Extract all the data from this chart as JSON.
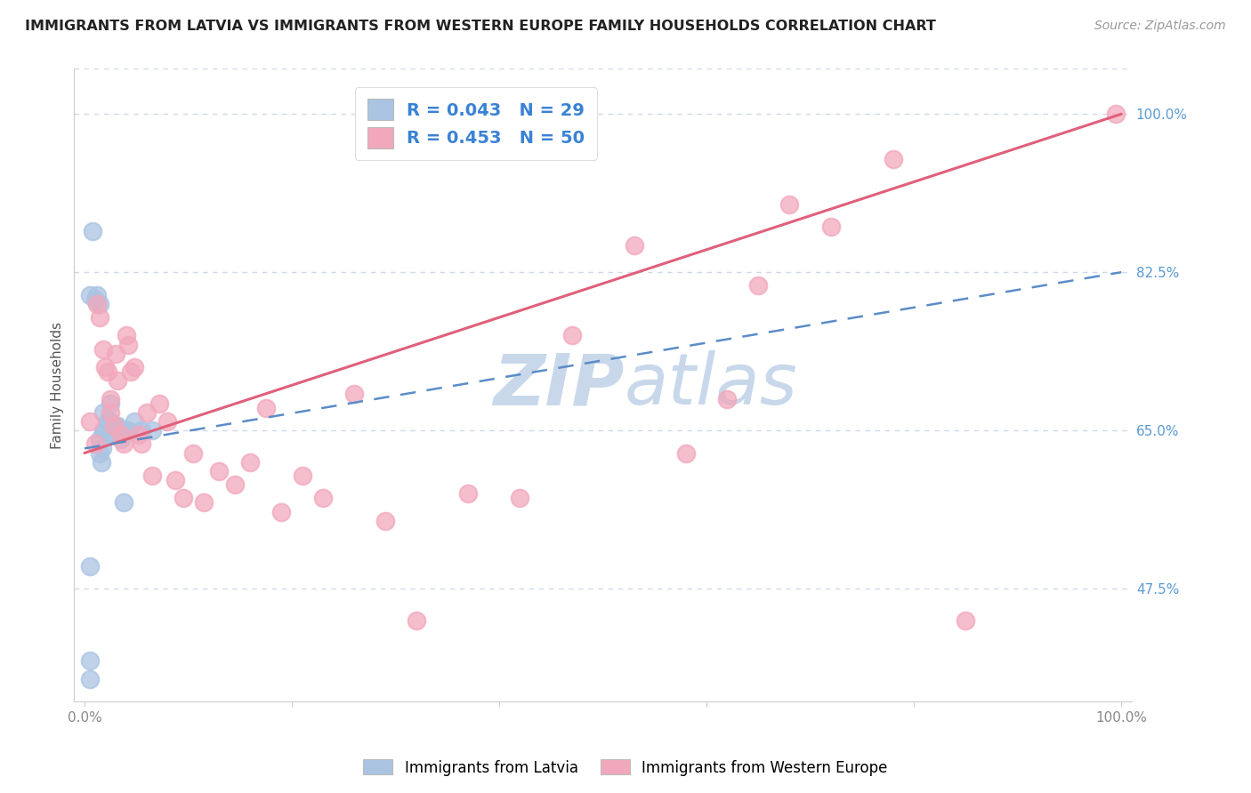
{
  "title": "IMMIGRANTS FROM LATVIA VS IMMIGRANTS FROM WESTERN EUROPE FAMILY HOUSEHOLDS CORRELATION CHART",
  "source": "Source: ZipAtlas.com",
  "ylabel": "Family Households",
  "y_ticks": [
    0.475,
    0.65,
    0.825,
    1.0
  ],
  "y_tick_labels": [
    "47.5%",
    "65.0%",
    "82.5%",
    "100.0%"
  ],
  "xlim": [
    -0.01,
    1.01
  ],
  "ylim": [
    0.35,
    1.05
  ],
  "blue_R": 0.043,
  "blue_N": 29,
  "pink_R": 0.453,
  "pink_N": 50,
  "blue_color": "#aac4e2",
  "pink_color": "#f2a8bc",
  "blue_line_color": "#5b8cc8",
  "pink_line_color": "#e0607a",
  "legend_text_color": "#3a82d4",
  "right_axis_color": "#5b9ad4",
  "watermark_color": "#c8d8ea",
  "blue_x": [
    0.005,
    0.005,
    0.008,
    0.01,
    0.012,
    0.015,
    0.015,
    0.015,
    0.016,
    0.017,
    0.018,
    0.018,
    0.02,
    0.022,
    0.025,
    0.025,
    0.027,
    0.03,
    0.03,
    0.032,
    0.035,
    0.038,
    0.04,
    0.042,
    0.048,
    0.055,
    0.065,
    0.005,
    0.005
  ],
  "blue_y": [
    0.375,
    0.395,
    0.87,
    0.795,
    0.8,
    0.79,
    0.64,
    0.625,
    0.615,
    0.63,
    0.65,
    0.67,
    0.65,
    0.66,
    0.66,
    0.68,
    0.645,
    0.645,
    0.655,
    0.655,
    0.64,
    0.57,
    0.65,
    0.65,
    0.66,
    0.65,
    0.65,
    0.8,
    0.5
  ],
  "pink_x": [
    0.005,
    0.01,
    0.012,
    0.015,
    0.018,
    0.02,
    0.022,
    0.025,
    0.025,
    0.028,
    0.03,
    0.032,
    0.035,
    0.038,
    0.04,
    0.042,
    0.045,
    0.048,
    0.052,
    0.055,
    0.06,
    0.065,
    0.072,
    0.08,
    0.088,
    0.095,
    0.105,
    0.115,
    0.13,
    0.145,
    0.16,
    0.175,
    0.19,
    0.21,
    0.23,
    0.26,
    0.29,
    0.32,
    0.37,
    0.42,
    0.47,
    0.53,
    0.58,
    0.62,
    0.65,
    0.68,
    0.72,
    0.78,
    0.85,
    0.995
  ],
  "pink_y": [
    0.66,
    0.635,
    0.79,
    0.775,
    0.74,
    0.72,
    0.715,
    0.685,
    0.67,
    0.655,
    0.735,
    0.705,
    0.645,
    0.635,
    0.755,
    0.745,
    0.715,
    0.72,
    0.645,
    0.635,
    0.67,
    0.6,
    0.68,
    0.66,
    0.595,
    0.575,
    0.625,
    0.57,
    0.605,
    0.59,
    0.615,
    0.675,
    0.56,
    0.6,
    0.575,
    0.69,
    0.55,
    0.44,
    0.58,
    0.575,
    0.755,
    0.855,
    0.625,
    0.685,
    0.81,
    0.9,
    0.875,
    0.95,
    0.44,
    1.0
  ],
  "blue_line_y_start": 0.63,
  "blue_line_y_end": 0.825,
  "pink_line_y_start": 0.625,
  "pink_line_y_end": 1.0,
  "grid_color": "#d0d8e8",
  "bg_color": "#ffffff"
}
